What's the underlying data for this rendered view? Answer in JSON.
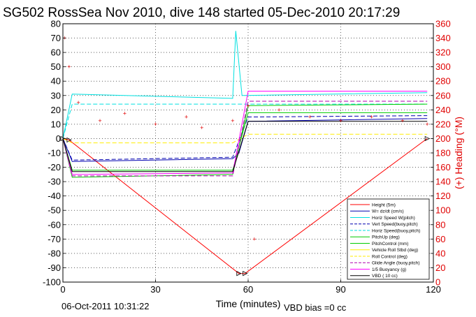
{
  "title": "SG502 RossSea Nov 2010, dive 148 started 05-Dec-2010 20:17:29",
  "footer_date": "06-Oct-2011 10:31:22",
  "footer_bias": "VBD bias =0 cc",
  "colors": {
    "heading": "#e00000",
    "depth": "#ff0000",
    "w": "#0000b0",
    "horz": "#00e0e0",
    "pitch": "#00cc00",
    "roll": "#ffee00",
    "glide": "#b000b0",
    "buoy": "#ff00ff",
    "vbd": "#000000"
  },
  "chart_data": {
    "type": "line",
    "xlabel": "Time (minutes)",
    "ylabel_right": "(+) Heading (°M)",
    "xlim": [
      0,
      120
    ],
    "ylim": [
      -100,
      80
    ],
    "ylim_right": [
      0,
      360
    ],
    "x_ticks": [
      0,
      30,
      60,
      90,
      120
    ],
    "y_ticks": [
      80,
      70,
      60,
      50,
      40,
      30,
      20,
      10,
      0,
      -10,
      -20,
      -30,
      -40,
      -50,
      -60,
      -70,
      -80,
      -90,
      -100
    ],
    "y_right_ticks": [
      360,
      340,
      320,
      300,
      280,
      260,
      240,
      220,
      200,
      180,
      160,
      140,
      120,
      100,
      80,
      60,
      40,
      20,
      0
    ],
    "grid": true,
    "legend_position": "bottom-right",
    "legend": [
      "Height (5m)",
      "W= dz/dt (cm/s)",
      "Horiz Speed W(pitch)",
      "Vert Speed(buoy,pitch)",
      "Horiz Speed(buoy,pitch)",
      "PitchUp (deg)",
      "PitchControl (mm)",
      "Vehicle Roll Stbd (deg)",
      "Roll Control (deg)",
      "Glide Angle (buoy,pitch)",
      "1/5 Buoyancy (g)",
      "VBD ( 10 cc)"
    ],
    "series": [
      {
        "name": "Height (5m)",
        "x": [
          0,
          2,
          57,
          59,
          118
        ],
        "y": [
          0,
          -1,
          -94,
          -94,
          0
        ]
      },
      {
        "name": "W= dz/dt (cm/s)",
        "x": [
          0,
          3,
          55,
          57,
          60,
          118
        ],
        "y": [
          0,
          -16,
          -14,
          -10,
          12,
          14
        ]
      },
      {
        "name": "Horiz Speed W(pitch)",
        "x": [
          0,
          3,
          55,
          56,
          58,
          118
        ],
        "y": [
          0,
          31,
          28,
          75,
          30,
          32
        ]
      },
      {
        "name": "Vert Speed(buoy,pitch)",
        "x": [
          0,
          3,
          55,
          60,
          118
        ],
        "y": [
          0,
          -15,
          -13,
          15,
          16
        ]
      },
      {
        "name": "Horiz Speed(buoy,pitch)",
        "x": [
          0,
          3,
          55,
          60,
          118
        ],
        "y": [
          0,
          24,
          24,
          24,
          24
        ]
      },
      {
        "name": "PitchUp (deg)",
        "x": [
          0,
          3,
          55,
          60,
          118
        ],
        "y": [
          0,
          -27,
          -25,
          23,
          24
        ]
      },
      {
        "name": "PitchControl (mm)",
        "x": [
          0,
          3,
          55,
          60,
          118
        ],
        "y": [
          0,
          -22,
          -22,
          18,
          18
        ]
      },
      {
        "name": "Roll Control (deg)",
        "x": [
          0,
          3,
          55,
          60,
          118
        ],
        "y": [
          0,
          -3,
          -3,
          3,
          3
        ]
      },
      {
        "name": "Glide Angle (buoy,pitch)",
        "x": [
          0,
          3,
          55,
          60,
          118
        ],
        "y": [
          0,
          -26,
          -26,
          26,
          26
        ]
      },
      {
        "name": "1/5 Buoyancy (g)",
        "x": [
          0,
          3,
          55,
          60,
          118
        ],
        "y": [
          0,
          -25,
          -24,
          33,
          33
        ]
      },
      {
        "name": "VBD ( 10 cc)",
        "x": [
          0,
          3,
          55,
          60,
          118
        ],
        "y": [
          0,
          -23,
          -23,
          12,
          12
        ]
      },
      {
        "name": "Heading",
        "axis": "right",
        "x": [
          0.5,
          2,
          5,
          12,
          20,
          30,
          40,
          45,
          55,
          60,
          62,
          70,
          80,
          90,
          100,
          110,
          118
        ],
        "y": [
          340,
          300,
          250,
          225,
          235,
          220,
          230,
          215,
          225,
          245,
          60,
          240,
          230,
          225,
          230,
          225,
          220
        ]
      }
    ]
  }
}
